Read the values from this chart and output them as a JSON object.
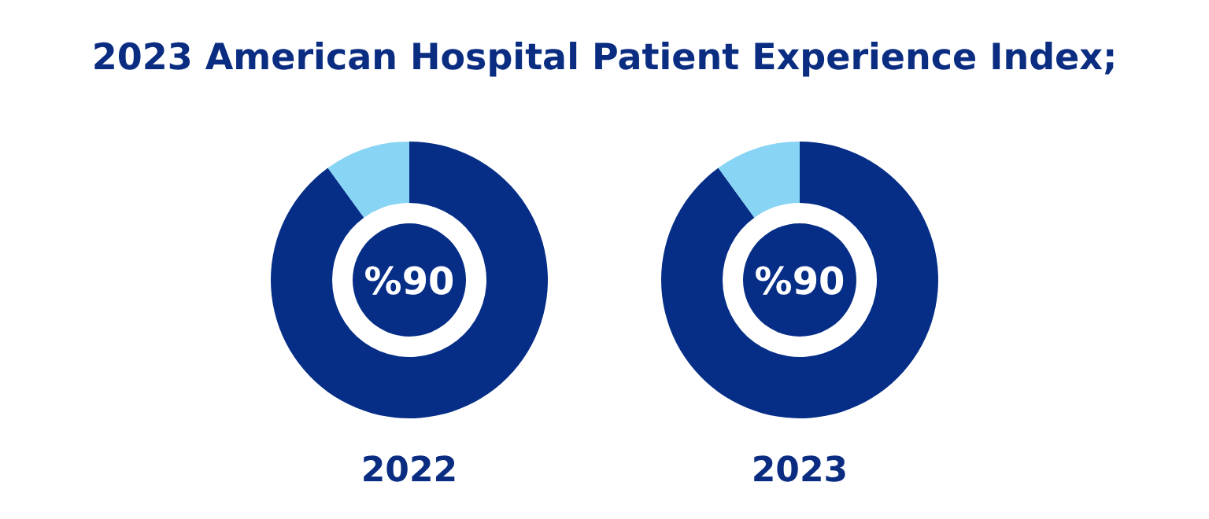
{
  "chart_data": [
    {
      "type": "donut",
      "title": "2023 American Hospital Patient Experience Index;",
      "xlabel": "2022",
      "categories": [
        null,
        null
      ],
      "values": [
        90,
        10
      ],
      "colors": [
        "#062e87",
        "#87d4f5"
      ],
      "value_labels": [
        "%90",
        null
      ]
    },
    {
      "type": "donut",
      "xlabel": "2023",
      "categories": [
        null,
        null
      ],
      "values": [
        90,
        10
      ],
      "colors": [
        "#062e87",
        "#87d4f5"
      ],
      "value_labels": [
        "%90",
        null
      ]
    }
  ]
}
